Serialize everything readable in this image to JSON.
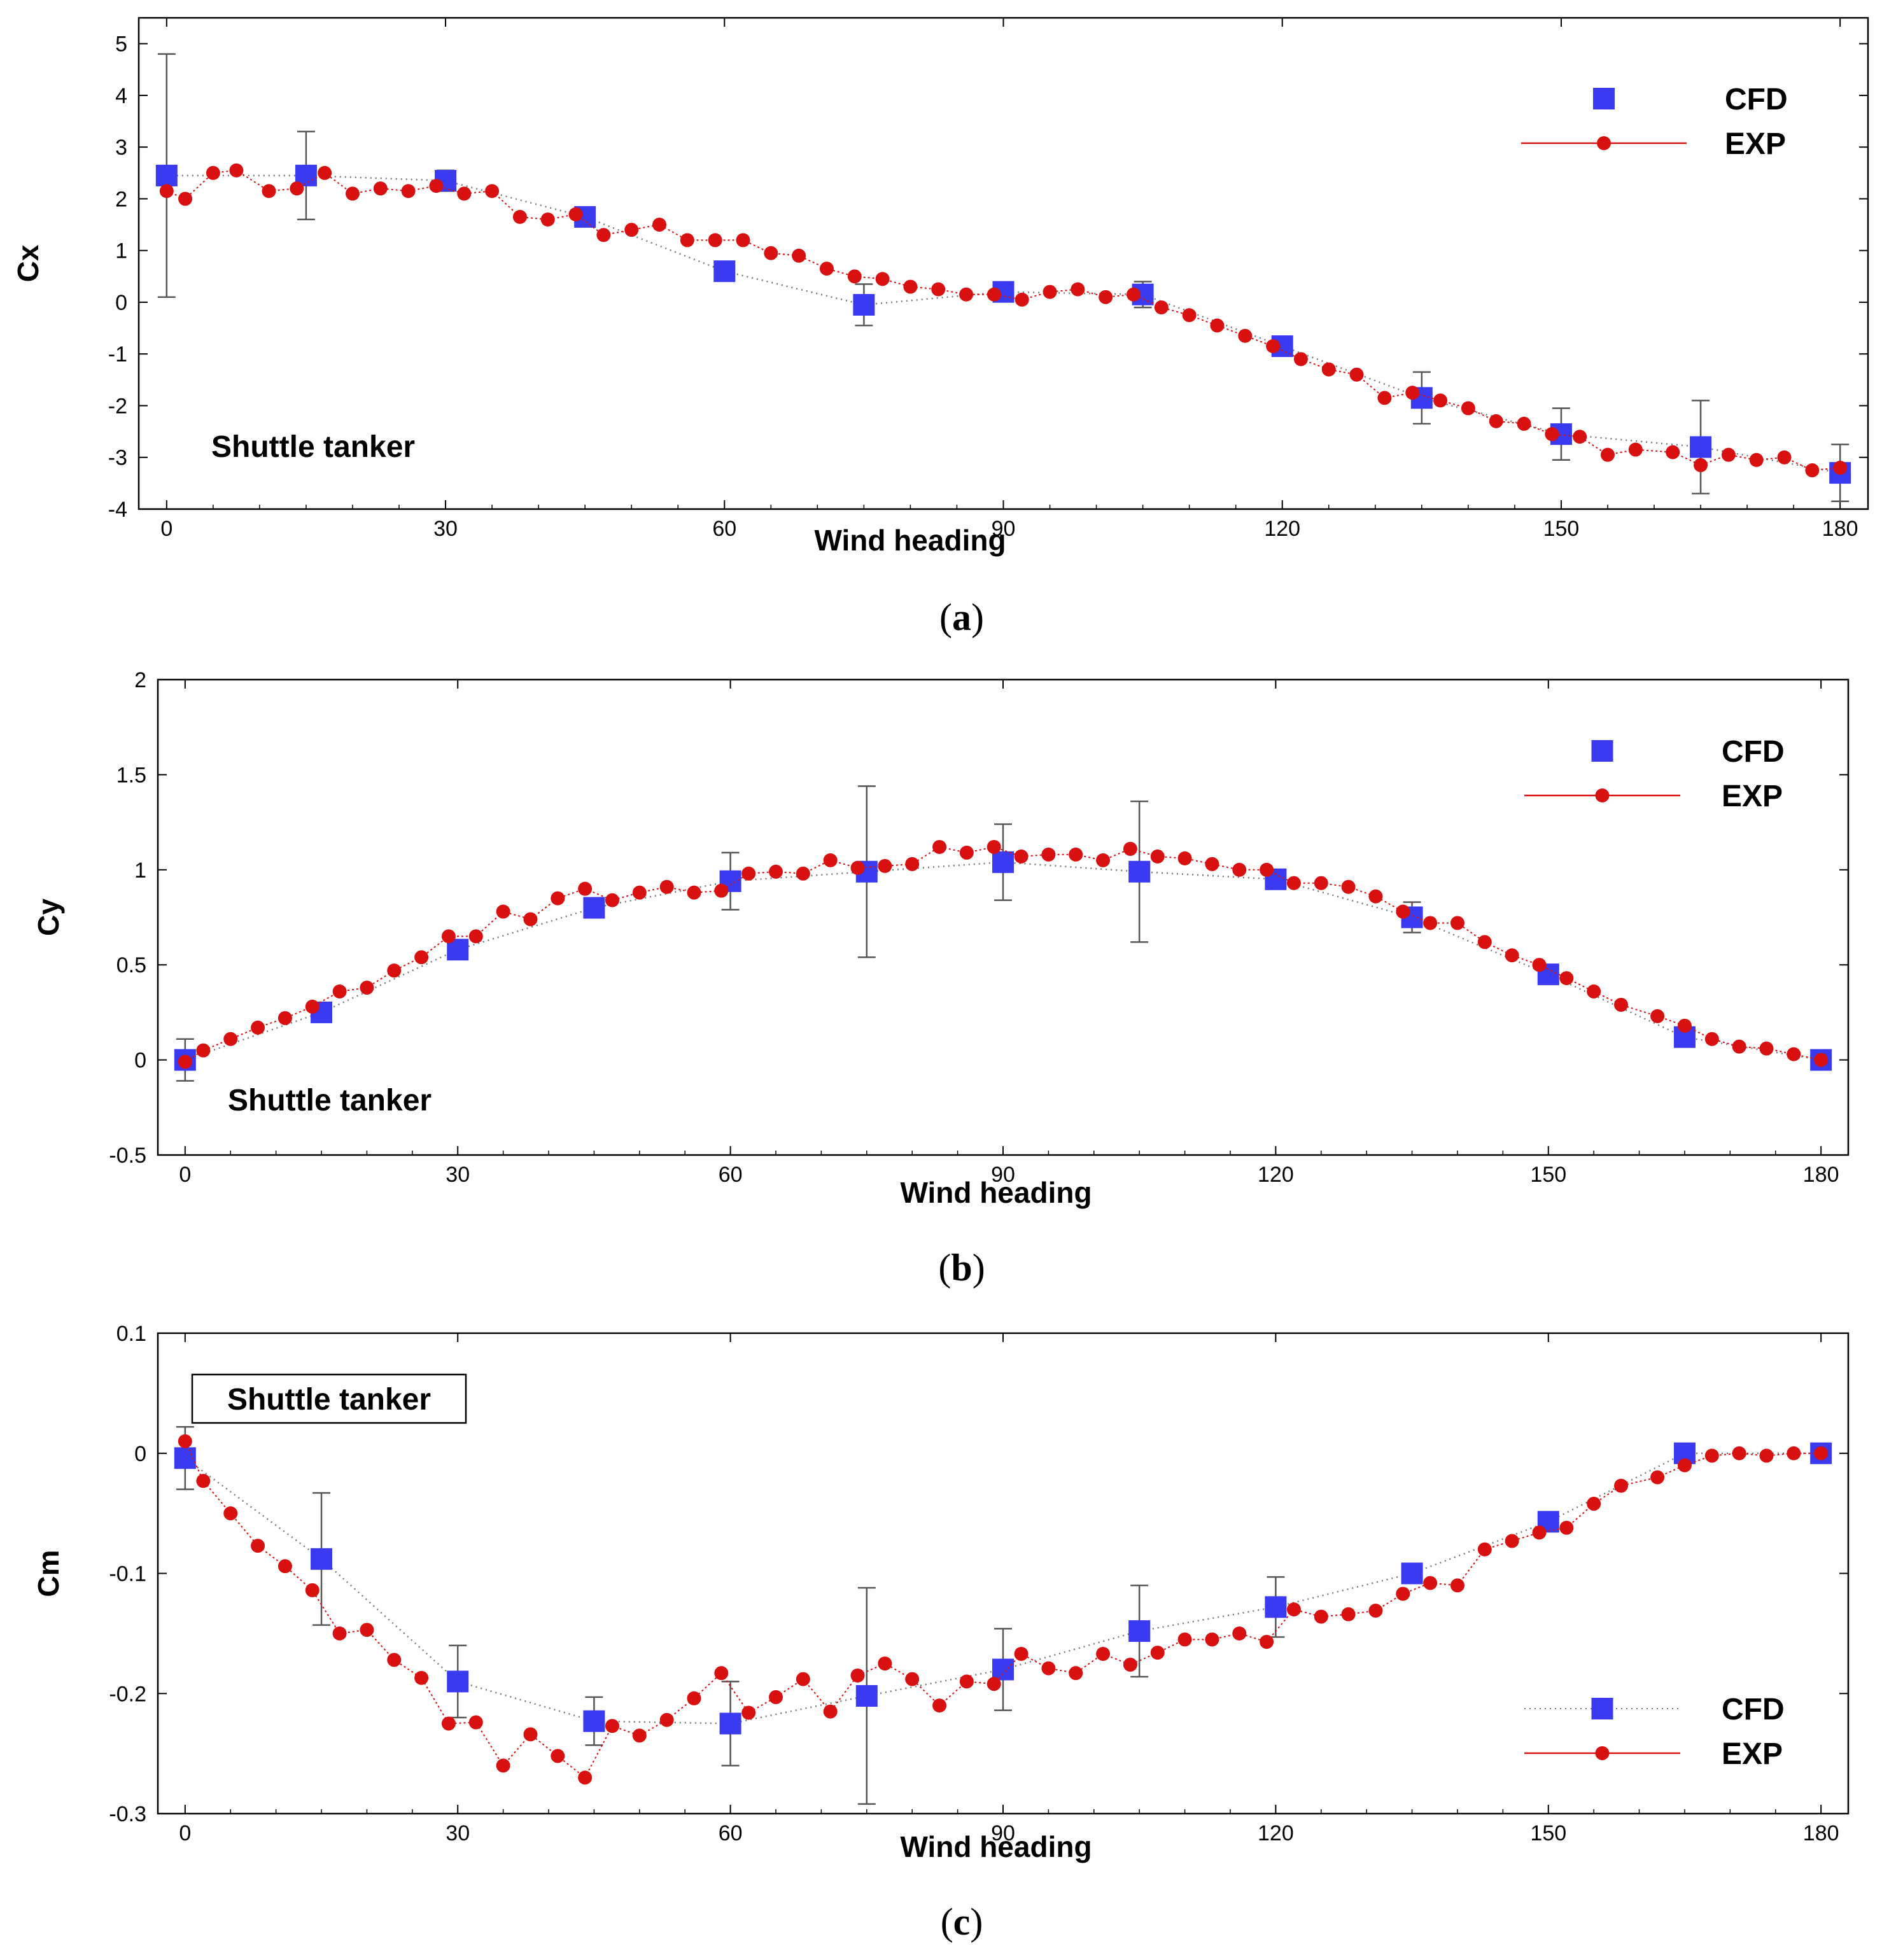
{
  "figure": {
    "captions": [
      "(a)",
      "(b)",
      "(c)"
    ],
    "caption_parts": [
      {
        "open": "(",
        "letter": "a",
        "close": ")"
      },
      {
        "open": "(",
        "letter": "b",
        "close": ")"
      },
      {
        "open": "(",
        "letter": "c",
        "close": ")"
      }
    ]
  },
  "colors": {
    "cfd": "#3a3af0",
    "exp": "#d81010",
    "errorbar": "#555555",
    "cfd_line": "#777777"
  },
  "chart_data": [
    {
      "type": "scatter",
      "xlabel": "Wind heading",
      "ylabel": "Cx",
      "xlim": [
        -3,
        183
      ],
      "ylim": [
        -4,
        5.5
      ],
      "xticks": [
        0,
        30,
        60,
        90,
        120,
        150,
        180
      ],
      "yticks": [
        -4,
        -3,
        -2,
        -1,
        0,
        1,
        2,
        3,
        4,
        5
      ],
      "annotation": "Shuttle tanker",
      "annotation_boxed": false,
      "legend_position": "top-right",
      "series": [
        {
          "name": "CFD",
          "x": [
            0,
            15,
            30,
            45,
            60,
            75,
            90,
            105,
            120,
            135,
            150,
            165,
            180
          ],
          "y": [
            2.45,
            2.45,
            2.35,
            1.65,
            0.6,
            -0.05,
            0.2,
            0.15,
            -0.85,
            -1.85,
            -2.55,
            -2.8,
            -3.3
          ],
          "err": [
            2.35,
            0.85,
            0.2,
            0.1,
            0.0,
            0.4,
            0.1,
            0.25,
            0.15,
            0.5,
            0.5,
            0.9,
            0.55
          ]
        },
        {
          "name": "EXP",
          "x": [
            0,
            2,
            5,
            7.5,
            11,
            14,
            17,
            20,
            23,
            26,
            29,
            32,
            35,
            38,
            41,
            44,
            47,
            50,
            53,
            56,
            59,
            62,
            65,
            68,
            71,
            74,
            77,
            80,
            83,
            86,
            89,
            92,
            95,
            98,
            101,
            104,
            107,
            110,
            113,
            116,
            119,
            122,
            125,
            128,
            131,
            134,
            137,
            140,
            143,
            146,
            149,
            152,
            155,
            158,
            162,
            165,
            168,
            171,
            174,
            177,
            180
          ],
          "y": [
            2.15,
            2.0,
            2.5,
            2.55,
            2.15,
            2.2,
            2.5,
            2.1,
            2.2,
            2.15,
            2.25,
            2.1,
            2.15,
            1.65,
            1.6,
            1.7,
            1.3,
            1.4,
            1.5,
            1.2,
            1.2,
            1.2,
            0.95,
            0.9,
            0.65,
            0.5,
            0.45,
            0.3,
            0.25,
            0.15,
            0.15,
            0.05,
            0.2,
            0.25,
            0.1,
            0.15,
            -0.1,
            -0.25,
            -0.45,
            -0.65,
            -0.85,
            -1.1,
            -1.3,
            -1.4,
            -1.85,
            -1.75,
            -1.9,
            -2.05,
            -2.3,
            -2.35,
            -2.55,
            -2.6,
            -2.95,
            -2.85,
            -2.9,
            -3.15,
            -2.95,
            -3.05,
            -3.0,
            -3.25,
            -3.2
          ]
        }
      ]
    },
    {
      "type": "scatter",
      "xlabel": "Wind heading",
      "ylabel": "Cy",
      "xlim": [
        -3,
        183
      ],
      "ylim": [
        -0.5,
        2
      ],
      "xticks": [
        0,
        30,
        60,
        90,
        120,
        150,
        180
      ],
      "yticks": [
        -0.5,
        0,
        0.5,
        1,
        1.5,
        2
      ],
      "annotation": "Shuttle tanker",
      "annotation_boxed": false,
      "legend_position": "top-right",
      "series": [
        {
          "name": "CFD",
          "x": [
            0,
            15,
            30,
            45,
            60,
            75,
            90,
            105,
            120,
            135,
            150,
            165,
            180
          ],
          "y": [
            0.0,
            0.25,
            0.58,
            0.8,
            0.94,
            0.99,
            1.04,
            0.99,
            0.95,
            0.75,
            0.45,
            0.12,
            0.0
          ],
          "err": [
            0.11,
            0.0,
            0.05,
            0.03,
            0.15,
            0.45,
            0.2,
            0.37,
            0.02,
            0.08,
            0.0,
            0.0,
            0.0
          ]
        },
        {
          "name": "EXP",
          "x": [
            0,
            2,
            5,
            8,
            11,
            14,
            17,
            20,
            23,
            26,
            29,
            32,
            35,
            38,
            41,
            44,
            47,
            50,
            53,
            56,
            59,
            62,
            65,
            68,
            71,
            74,
            77,
            80,
            83,
            86,
            89,
            92,
            95,
            98,
            101,
            104,
            107,
            110,
            113,
            116,
            119,
            122,
            125,
            128,
            131,
            134,
            137,
            140,
            143,
            146,
            149,
            152,
            155,
            158,
            162,
            165,
            168,
            171,
            174,
            177,
            180
          ],
          "y": [
            -0.01,
            0.05,
            0.11,
            0.17,
            0.22,
            0.28,
            0.36,
            0.38,
            0.47,
            0.54,
            0.65,
            0.65,
            0.78,
            0.74,
            0.85,
            0.9,
            0.84,
            0.88,
            0.91,
            0.88,
            0.89,
            0.98,
            0.99,
            0.98,
            1.05,
            1.01,
            1.02,
            1.03,
            1.12,
            1.09,
            1.12,
            1.07,
            1.08,
            1.08,
            1.05,
            1.11,
            1.07,
            1.06,
            1.03,
            1.0,
            1.0,
            0.93,
            0.93,
            0.91,
            0.86,
            0.78,
            0.72,
            0.72,
            0.62,
            0.55,
            0.5,
            0.43,
            0.36,
            0.29,
            0.23,
            0.18,
            0.11,
            0.07,
            0.06,
            0.03,
            0.0
          ]
        }
      ]
    },
    {
      "type": "scatter",
      "xlabel": "Wind heading",
      "ylabel": "Cm",
      "xlim": [
        -3,
        183
      ],
      "ylim": [
        -0.3,
        0.1
      ],
      "xticks": [
        0,
        30,
        60,
        90,
        120,
        150,
        180
      ],
      "yticks": [
        -0.3,
        -0.2,
        -0.1,
        0,
        0.1
      ],
      "annotation": "Shuttle tanker",
      "annotation_boxed": true,
      "legend_position": "bottom-right",
      "series": [
        {
          "name": "CFD",
          "x": [
            0,
            15,
            30,
            45,
            60,
            75,
            90,
            105,
            120,
            135,
            150,
            165,
            180
          ],
          "y": [
            -0.004,
            -0.088,
            -0.19,
            -0.223,
            -0.225,
            -0.202,
            -0.18,
            -0.148,
            -0.128,
            -0.1,
            -0.057,
            0.0,
            0.0
          ],
          "err": [
            0.026,
            0.055,
            0.03,
            0.02,
            0.035,
            0.09,
            0.034,
            0.038,
            0.025,
            0.0,
            0.0,
            0.0,
            0.0
          ]
        },
        {
          "name": "EXP",
          "x": [
            0,
            2,
            5,
            8,
            11,
            14,
            17,
            20,
            23,
            26,
            29,
            32,
            35,
            38,
            41,
            44,
            47,
            50,
            53,
            56,
            59,
            62,
            65,
            68,
            71,
            74,
            77,
            80,
            83,
            86,
            89,
            92,
            95,
            98,
            101,
            104,
            107,
            110,
            113,
            116,
            119,
            122,
            125,
            128,
            131,
            134,
            137,
            140,
            143,
            146,
            149,
            152,
            155,
            158,
            162,
            165,
            168,
            171,
            174,
            177,
            180
          ],
          "y": [
            0.01,
            -0.023,
            -0.05,
            -0.077,
            -0.094,
            -0.114,
            -0.15,
            -0.147,
            -0.172,
            -0.187,
            -0.225,
            -0.224,
            -0.26,
            -0.234,
            -0.252,
            -0.27,
            -0.227,
            -0.235,
            -0.222,
            -0.204,
            -0.183,
            -0.216,
            -0.203,
            -0.188,
            -0.215,
            -0.185,
            -0.175,
            -0.188,
            -0.21,
            -0.19,
            -0.192,
            -0.167,
            -0.179,
            -0.183,
            -0.167,
            -0.176,
            -0.166,
            -0.155,
            -0.155,
            -0.15,
            -0.157,
            -0.13,
            -0.136,
            -0.134,
            -0.131,
            -0.117,
            -0.108,
            -0.11,
            -0.08,
            -0.073,
            -0.066,
            -0.062,
            -0.042,
            -0.027,
            -0.02,
            -0.01,
            -0.002,
            0.0,
            -0.002,
            0.0,
            0.0
          ]
        }
      ]
    }
  ]
}
